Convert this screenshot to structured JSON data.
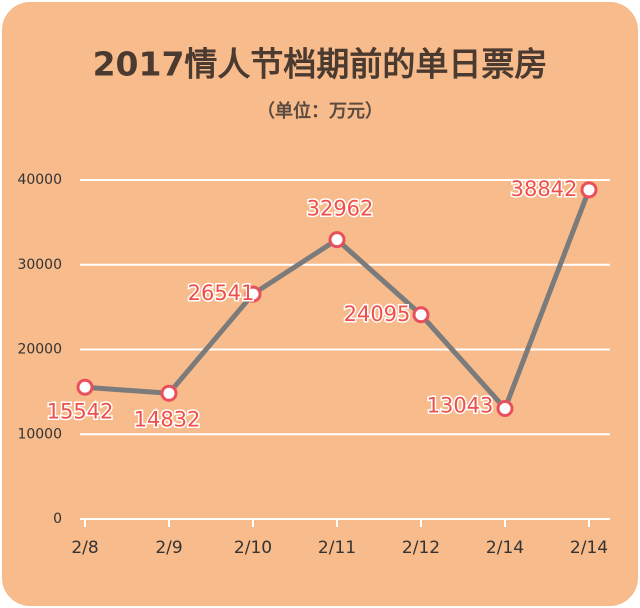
{
  "chart_data": {
    "type": "line",
    "title": "2017情人节档期前的单日票房",
    "subtitle": "（单位：万元）",
    "categories": [
      "2/8",
      "2/9",
      "2/10",
      "2/11",
      "2/12",
      "2/14",
      "2/14"
    ],
    "series": [
      {
        "name": "单日票房",
        "color": "#e8505b",
        "values": [
          15542,
          14832,
          26541,
          32962,
          24095,
          13043,
          38842
        ]
      }
    ],
    "ylim": [
      0,
      40000
    ],
    "yticks": [
      0,
      10000,
      20000,
      30000,
      40000
    ],
    "grid": true
  }
}
